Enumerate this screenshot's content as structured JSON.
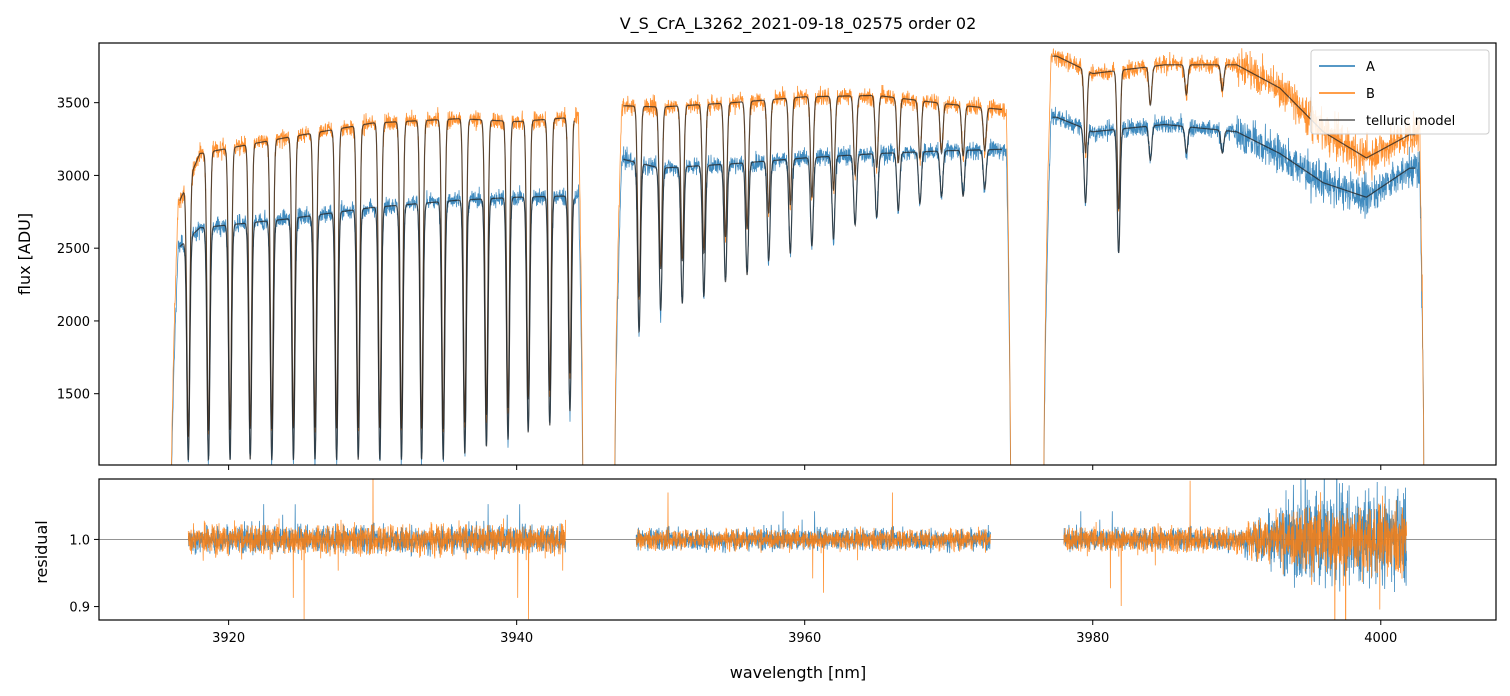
{
  "chart_data": [
    {
      "panel": "top",
      "type": "line",
      "title": "V_S_CrA_L3262_2021-09-18_02575  order 02",
      "xlabel": "",
      "ylabel": "flux [ADU]",
      "xlim": [
        3911,
        4008
      ],
      "ylim": [
        1010,
        3910
      ],
      "xticks": [
        3920,
        3940,
        3960,
        3980,
        4000
      ],
      "yticks": [
        1500,
        2000,
        2500,
        3000,
        3500
      ],
      "colors": {
        "A": "#1f77b4",
        "B": "#ff7f0e",
        "telluric": "#222222"
      },
      "legend": {
        "position": "top-right",
        "entries": [
          "A",
          "B",
          "telluric model"
        ]
      },
      "segments": [
        {
          "x_range": [
            3916.0,
            3944.6
          ],
          "A_continuum": [
            [
              3916.5,
              2500
            ],
            [
              3918,
              2640
            ],
            [
              3924,
              2700
            ],
            [
              3930,
              2780
            ],
            [
              3936,
              2830
            ],
            [
              3940,
              2850
            ],
            [
              3944,
              2860
            ]
          ],
          "B_continuum": [
            [
              3916.5,
              2800
            ],
            [
              3918,
              3150
            ],
            [
              3924,
              3260
            ],
            [
              3930,
              3360
            ],
            [
              3936,
              3390
            ],
            [
              3940,
              3370
            ],
            [
              3944,
              3400
            ]
          ],
          "line_centers": [
            3917.2,
            3918.6,
            3920.1,
            3921.5,
            3923.0,
            3924.5,
            3926.0,
            3927.5,
            3929.0,
            3930.5,
            3932.0,
            3933.4,
            3934.9,
            3936.4,
            3937.9,
            3939.4,
            3940.8,
            3942.3,
            3943.7
          ],
          "line_min_flux": [
            1010,
            1010,
            1010,
            1010,
            1010,
            1010,
            1010,
            1010,
            1010,
            1010,
            1010,
            1010,
            1010,
            1050,
            1100,
            1150,
            1200,
            1250,
            1350
          ]
        },
        {
          "x_range": [
            3946.8,
            3974.3
          ],
          "A_continuum": [
            [
              3947,
              3120
            ],
            [
              3950,
              3050
            ],
            [
              3955,
              3080
            ],
            [
              3960,
              3120
            ],
            [
              3965,
              3150
            ],
            [
              3970,
              3170
            ],
            [
              3974,
              3180
            ]
          ],
          "B_continuum": [
            [
              3947,
              3480
            ],
            [
              3950,
              3470
            ],
            [
              3955,
              3500
            ],
            [
              3960,
              3540
            ],
            [
              3965,
              3550
            ],
            [
              3970,
              3490
            ],
            [
              3974,
              3450
            ]
          ],
          "line_centers": [
            3948.5,
            3950.0,
            3951.5,
            3953.0,
            3954.5,
            3956.0,
            3957.5,
            3959.0,
            3960.5,
            3962.0,
            3963.5,
            3965.0,
            3966.5,
            3968.0,
            3969.5,
            3971.0,
            3972.5
          ],
          "line_min_flux": [
            1900,
            2050,
            2100,
            2150,
            2250,
            2300,
            2400,
            2450,
            2500,
            2550,
            2650,
            2700,
            2750,
            2800,
            2850,
            2850,
            2900
          ]
        },
        {
          "x_range": [
            3976.6,
            4003.0
          ],
          "A_continuum": [
            [
              3977.5,
              3400
            ],
            [
              3980,
              3300
            ],
            [
              3985,
              3350
            ],
            [
              3990,
              3300
            ],
            [
              3993,
              3150
            ],
            [
              3996,
              2950
            ],
            [
              3999,
              2850
            ],
            [
              4002,
              3050
            ]
          ],
          "B_continuum": [
            [
              3977.5,
              3820
            ],
            [
              3980,
              3700
            ],
            [
              3985,
              3760
            ],
            [
              3990,
              3760
            ],
            [
              3993,
              3600
            ],
            [
              3996,
              3300
            ],
            [
              3999,
              3120
            ],
            [
              4002,
              3280
            ]
          ],
          "line_centers": [
            3979.5,
            3981.8,
            3984.0,
            3986.5,
            3989.0
          ],
          "line_min_flux": [
            2800,
            2450,
            3100,
            3150,
            3150
          ]
        }
      ]
    },
    {
      "panel": "bottom",
      "type": "line",
      "xlabel": "wavelength [nm]",
      "ylabel": "residual",
      "xlim": [
        3911,
        4008
      ],
      "ylim": [
        0.88,
        1.09
      ],
      "xticks": [
        3920,
        3940,
        3960,
        3980,
        4000
      ],
      "yticks": [
        0.9,
        1.0
      ],
      "reference_line": 1.0,
      "segments": [
        {
          "x_range": [
            3917.2,
            3943.4
          ],
          "noise_A": 0.025,
          "noise_B": 0.03
        },
        {
          "x_range": [
            3948.3,
            3972.9
          ],
          "noise_A": 0.02,
          "noise_B": 0.02
        },
        {
          "x_range": [
            3978.0,
            4001.8
          ],
          "noise_A": 0.02,
          "noise_B": 0.025,
          "noisy_from": 3990,
          "noise_max": 0.09
        }
      ]
    }
  ],
  "labels": {
    "title": "V_S_CrA_L3262_2021-09-18_02575  order 02",
    "top_ylabel": "flux [ADU]",
    "bottom_ylabel": "residual",
    "xlabel": "wavelength [nm]",
    "legend_A": "A",
    "legend_B": "B",
    "legend_model": "telluric model",
    "xtick_3920": "3920",
    "xtick_3940": "3940",
    "xtick_3960": "3960",
    "xtick_3980": "3980",
    "xtick_4000": "4000",
    "ytick_1500": "1500",
    "ytick_2000": "2000",
    "ytick_2500": "2500",
    "ytick_3000": "3000",
    "ytick_3500": "3500",
    "rtick_09": "0.9",
    "rtick_10": "1.0"
  }
}
